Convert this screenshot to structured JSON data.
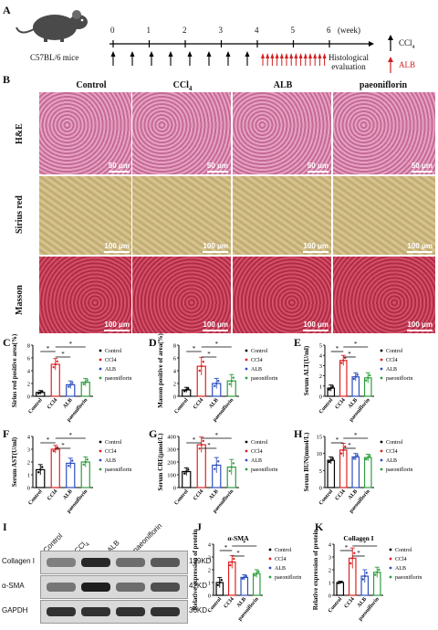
{
  "panels": [
    "A",
    "B",
    "C",
    "D",
    "E",
    "F",
    "G",
    "H",
    "I",
    "J",
    "K"
  ],
  "timeline": {
    "mouse_label": "C57BL/6 mice",
    "weeks": [
      "0",
      "1",
      "2",
      "3",
      "4",
      "5",
      "6"
    ],
    "unit": "(week)",
    "histology": [
      "Histological",
      "evaluation"
    ],
    "legend_ccl4": "CCl",
    "legend_ccl4_sub": "4",
    "legend_alb": "ALB"
  },
  "histology": {
    "columns": [
      "Control",
      "CCl",
      "ALB",
      "paeoniflorin"
    ],
    "ccl4_sub": "4",
    "rows": [
      "H&E",
      "Sirius red",
      "Masson"
    ],
    "scales": [
      "50 μm",
      "100 μm",
      "100 μm"
    ]
  },
  "colors": {
    "control": "#000000",
    "ccl4": "#e02020",
    "alb": "#2f4fbf",
    "paeoniflorin": "#2e9e3e"
  },
  "groups": [
    "Control",
    "CCl4",
    "ALB",
    "paeoniflorin"
  ],
  "chart_data": [
    {
      "panel": "C",
      "type": "bar",
      "ylabel": "Sirius red positive area(%)",
      "ylim": [
        0,
        8
      ],
      "yticks": [
        0,
        2,
        4,
        6,
        8
      ],
      "categories": [
        "Control",
        "CCl4",
        "ALB",
        "paeoniflorin"
      ],
      "values": [
        0.6,
        5.0,
        1.8,
        2.2
      ],
      "errors": [
        0.3,
        0.9,
        0.6,
        0.6
      ],
      "sig": [
        "*",
        "*",
        "*"
      ]
    },
    {
      "panel": "D",
      "type": "bar",
      "ylabel": "Masson positive of area(%)",
      "ylim": [
        0,
        8
      ],
      "yticks": [
        0,
        2,
        4,
        6,
        8
      ],
      "categories": [
        "Control",
        "CCl4",
        "ALB",
        "paeoniflorin"
      ],
      "values": [
        1.0,
        4.7,
        2.0,
        2.4
      ],
      "errors": [
        0.4,
        1.4,
        0.8,
        1.0
      ],
      "sig": [
        "*",
        "*",
        "*"
      ]
    },
    {
      "panel": "E",
      "type": "bar",
      "ylabel": "Serum ALT(U/ml)",
      "ylim": [
        0,
        5
      ],
      "yticks": [
        0,
        1,
        2,
        3,
        4,
        5
      ],
      "categories": [
        "Control",
        "CCl4",
        "ALB",
        "paeoniflorin"
      ],
      "values": [
        0.8,
        3.5,
        1.9,
        1.8
      ],
      "errors": [
        0.3,
        0.5,
        0.4,
        0.5
      ],
      "sig": [
        "*",
        "*",
        "*"
      ]
    },
    {
      "panel": "F",
      "type": "bar",
      "ylabel": "Serum AST(U/ml)",
      "ylim": [
        0,
        4
      ],
      "yticks": [
        0,
        1,
        2,
        3,
        4
      ],
      "categories": [
        "Control",
        "CCl4",
        "ALB",
        "paeoniflorin"
      ],
      "values": [
        1.4,
        3.0,
        1.9,
        2.0
      ],
      "errors": [
        0.4,
        0.3,
        0.4,
        0.4
      ],
      "sig": [
        "*",
        "*",
        "*"
      ]
    },
    {
      "panel": "G",
      "type": "bar",
      "ylabel": "Serum CRE(μmol/L)",
      "ylim": [
        0,
        400
      ],
      "yticks": [
        0,
        100,
        200,
        300,
        400
      ],
      "categories": [
        "Control",
        "CCl4",
        "ALB",
        "paeoniflorin"
      ],
      "values": [
        125,
        335,
        175,
        160
      ],
      "errors": [
        30,
        60,
        60,
        60
      ],
      "sig": [
        "*",
        "*",
        "*"
      ]
    },
    {
      "panel": "H",
      "type": "bar",
      "ylabel": "Serum BUN(mmol/L)",
      "ylim": [
        0,
        15
      ],
      "yticks": [
        0,
        5,
        10,
        15
      ],
      "categories": [
        "Control",
        "CCl4",
        "ALB",
        "paeoniflorin"
      ],
      "values": [
        8,
        11,
        9,
        8.8
      ],
      "errors": [
        1,
        2,
        1,
        1
      ],
      "sig": [
        "*",
        "*",
        "*"
      ]
    },
    {
      "panel": "J",
      "type": "bar",
      "title": "α-SMA",
      "ylabel": "Relative expression of protein",
      "ylim": [
        0,
        4
      ],
      "yticks": [
        0,
        1,
        2,
        3,
        4
      ],
      "categories": [
        "Control",
        "CCl4",
        "ALB",
        "paeoniflorin"
      ],
      "values": [
        1.0,
        2.6,
        1.4,
        1.7
      ],
      "errors": [
        0.4,
        0.5,
        0.2,
        0.3
      ],
      "sig": [
        "*",
        "*",
        "*"
      ]
    },
    {
      "panel": "K",
      "type": "bar",
      "title": "Collagen I",
      "ylabel": "Relative expression of protein",
      "ylim": [
        0,
        4
      ],
      "yticks": [
        0,
        1,
        2,
        3,
        4
      ],
      "categories": [
        "Control",
        "CCl4",
        "ALB",
        "paeoniflorin"
      ],
      "values": [
        1.0,
        2.9,
        1.5,
        1.8
      ],
      "errors": [
        0.1,
        0.8,
        0.5,
        0.4
      ],
      "sig": [
        "*",
        "*",
        "*"
      ]
    }
  ],
  "western": {
    "lanes": [
      "Control",
      "CCl",
      "ALB",
      "paeoniflorin"
    ],
    "ccl4_sub": "4",
    "bands": [
      {
        "name": "Collagen I",
        "size": "139KD"
      },
      {
        "name": "α-SMA",
        "size": "42KD"
      },
      {
        "name": "GAPDH",
        "size": "36KD"
      }
    ]
  }
}
